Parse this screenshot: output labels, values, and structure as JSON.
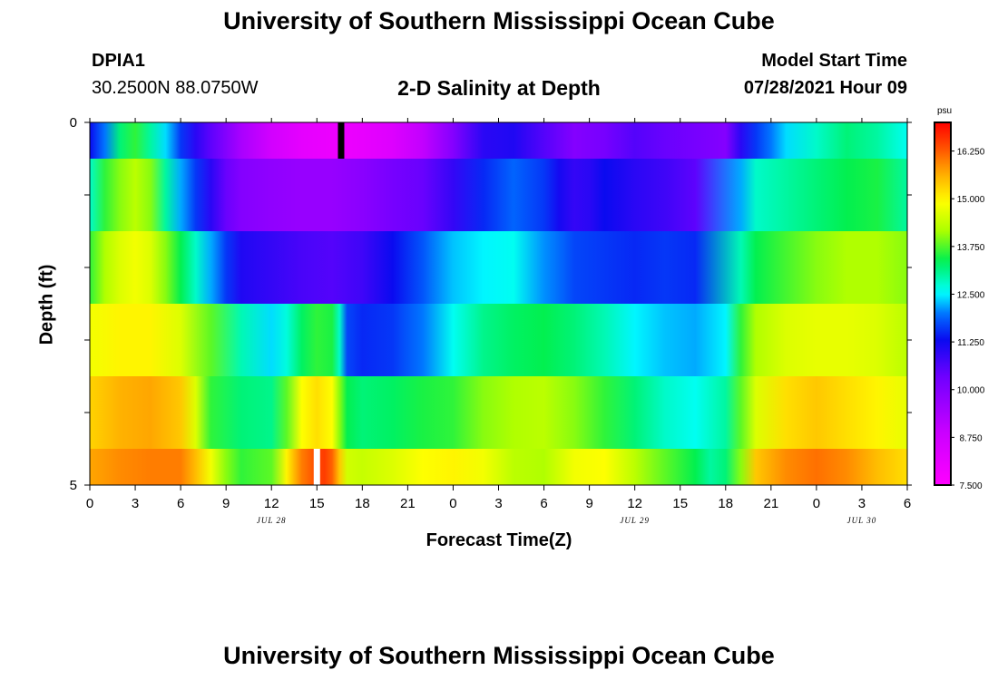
{
  "header": {
    "title": "University of Southern Mississippi Ocean Cube",
    "station": "DPIA1",
    "coords": "30.2500N  88.0750W",
    "plot_title": "2-D Salinity at Depth",
    "model_start_label": "Model Start Time",
    "model_start_value": "07/28/2021 Hour 09"
  },
  "footer": {
    "title": "University of Southern Mississippi Ocean Cube"
  },
  "chart_data": {
    "type": "heatmap",
    "title": "2-D Salinity at Depth",
    "xlabel": "Forecast Time(Z)",
    "ylabel": "Depth (ft)",
    "y_tick_labels": [
      "0",
      "5"
    ],
    "ylim": [
      0,
      5
    ],
    "x_tick_labels": [
      "0",
      "3",
      "6",
      "9",
      "12",
      "15",
      "18",
      "21",
      "0",
      "3",
      "6",
      "9",
      "12",
      "15",
      "18",
      "21",
      "0",
      "3",
      "6"
    ],
    "x_hours_range": [
      0,
      54
    ],
    "date_labels": [
      {
        "text": "JUL 28",
        "hour": 12
      },
      {
        "text": "JUL 29",
        "hour": 36
      },
      {
        "text": "JUL 30",
        "hour": 51
      }
    ],
    "colorbar": {
      "unit": "psu",
      "min": 7.5,
      "max": 17.0,
      "tick_labels": [
        "7.500",
        "8.750",
        "10.000",
        "11.250",
        "12.500",
        "13.750",
        "15.000",
        "16.250"
      ],
      "tick_values": [
        7.5,
        8.75,
        10.0,
        11.25,
        12.5,
        13.75,
        15.0,
        16.25
      ]
    },
    "layers": [
      {
        "depth_range": [
          0,
          0.5
        ],
        "hours": [
          0,
          1,
          2,
          3,
          4,
          5,
          6,
          7,
          8,
          10,
          12,
          14,
          16,
          16.5,
          17,
          18,
          20,
          22,
          24,
          26,
          28,
          30,
          32,
          34,
          36,
          38,
          40,
          42,
          43,
          44,
          45,
          46,
          48,
          50,
          52,
          54
        ],
        "values": [
          11.3,
          12.0,
          13.2,
          13.6,
          13.0,
          12.4,
          11.6,
          11.0,
          10.5,
          9.4,
          8.7,
          8.2,
          8.0,
          8.0,
          8.0,
          8.1,
          8.4,
          9.0,
          10.0,
          11.0,
          11.1,
          10.6,
          10.0,
          10.2,
          10.6,
          10.4,
          10.2,
          10.0,
          11.0,
          11.6,
          12.0,
          12.4,
          12.8,
          13.2,
          13.0,
          12.6
        ]
      },
      {
        "depth_range": [
          0.5,
          1.5
        ],
        "hours": [
          0,
          1,
          2,
          3,
          4,
          5,
          6,
          7,
          8,
          9,
          10,
          12,
          14,
          16,
          18,
          20,
          22,
          24,
          26,
          28,
          30,
          31,
          32,
          33,
          34,
          36,
          38,
          40,
          43,
          44,
          46,
          48,
          50,
          52,
          54
        ],
        "values": [
          12.8,
          13.6,
          14.0,
          14.3,
          14.0,
          13.0,
          12.2,
          11.6,
          11.0,
          10.4,
          10.0,
          9.8,
          9.7,
          9.7,
          9.9,
          10.2,
          10.4,
          10.9,
          11.5,
          11.9,
          11.6,
          11.2,
          10.9,
          11.0,
          11.3,
          11.0,
          10.8,
          10.5,
          12.2,
          12.8,
          13.0,
          13.2,
          13.4,
          13.5,
          13.0
        ]
      },
      {
        "depth_range": [
          1.5,
          2.5
        ],
        "hours": [
          0,
          1,
          2,
          3,
          4,
          5,
          6,
          7,
          8,
          9,
          10,
          11,
          12,
          14,
          16,
          18,
          20,
          22,
          24,
          26,
          28,
          30,
          32,
          34,
          36,
          38,
          40,
          43,
          44,
          46,
          48,
          50,
          52,
          54
        ],
        "values": [
          13.6,
          14.2,
          14.6,
          14.8,
          14.6,
          14.0,
          13.4,
          12.8,
          12.2,
          11.6,
          11.1,
          11.0,
          10.9,
          10.7,
          10.6,
          10.8,
          11.3,
          11.8,
          12.3,
          12.5,
          12.6,
          12.1,
          11.7,
          11.6,
          11.5,
          11.6,
          11.5,
          12.9,
          13.4,
          13.7,
          14.0,
          14.2,
          14.2,
          14.0
        ]
      },
      {
        "depth_range": [
          2.5,
          3.5
        ],
        "hours": [
          0,
          2,
          4,
          6,
          8,
          10,
          12,
          13,
          14,
          15,
          16,
          16.5,
          17,
          18,
          20,
          22,
          24,
          26,
          28,
          30,
          32,
          34,
          36,
          38,
          40,
          42,
          43,
          44,
          46,
          48,
          50,
          52,
          54
        ],
        "values": [
          14.8,
          15.0,
          15.0,
          14.6,
          13.8,
          12.9,
          12.4,
          12.7,
          13.3,
          13.6,
          13.5,
          12.8,
          11.7,
          11.5,
          11.6,
          12.0,
          12.6,
          13.1,
          13.3,
          13.4,
          13.2,
          12.9,
          12.5,
          12.3,
          12.2,
          12.5,
          13.6,
          14.2,
          14.6,
          14.7,
          14.7,
          14.6,
          14.3
        ]
      },
      {
        "depth_range": [
          3.5,
          4.5
        ],
        "hours": [
          0,
          2,
          4,
          6,
          7,
          8,
          10,
          12,
          13,
          14,
          15,
          16,
          16.5,
          17,
          18,
          20,
          22,
          24,
          26,
          28,
          30,
          32,
          34,
          36,
          38,
          40,
          42,
          43,
          44,
          46,
          48,
          50,
          52,
          54
        ],
        "values": [
          15.3,
          15.6,
          15.7,
          15.4,
          14.6,
          13.6,
          13.2,
          13.1,
          13.8,
          14.9,
          15.2,
          14.9,
          14.0,
          13.4,
          13.2,
          13.3,
          13.5,
          13.6,
          14.0,
          14.2,
          14.3,
          14.0,
          13.6,
          13.2,
          12.8,
          12.6,
          13.0,
          13.8,
          14.6,
          15.2,
          15.4,
          15.2,
          15.0,
          14.7
        ]
      },
      {
        "depth_range": [
          4.5,
          5.0
        ],
        "hours": [
          0,
          2,
          4,
          6,
          7,
          8,
          9,
          10,
          12,
          13,
          14,
          15,
          15.5,
          16,
          16.5,
          17,
          18,
          20,
          22,
          24,
          26,
          28,
          30,
          32,
          34,
          36,
          38,
          40,
          41,
          42,
          43,
          44,
          46,
          48,
          50,
          52,
          54
        ],
        "values": [
          15.7,
          15.9,
          16.0,
          16.0,
          15.5,
          14.8,
          14.0,
          13.6,
          13.8,
          15.0,
          16.0,
          16.4,
          16.5,
          16.2,
          15.4,
          14.5,
          14.4,
          14.6,
          14.9,
          15.0,
          14.8,
          14.3,
          14.2,
          14.8,
          14.9,
          14.3,
          13.8,
          13.4,
          13.0,
          13.2,
          14.0,
          15.4,
          15.9,
          16.1,
          15.9,
          15.5,
          15.2
        ]
      }
    ],
    "markers": [
      {
        "color": "#000000",
        "hour": 16.6,
        "depth_range": [
          0,
          0.5
        ]
      },
      {
        "color": "#ffffff",
        "hour": 15.0,
        "depth_range": [
          4.5,
          5.0
        ]
      }
    ]
  }
}
